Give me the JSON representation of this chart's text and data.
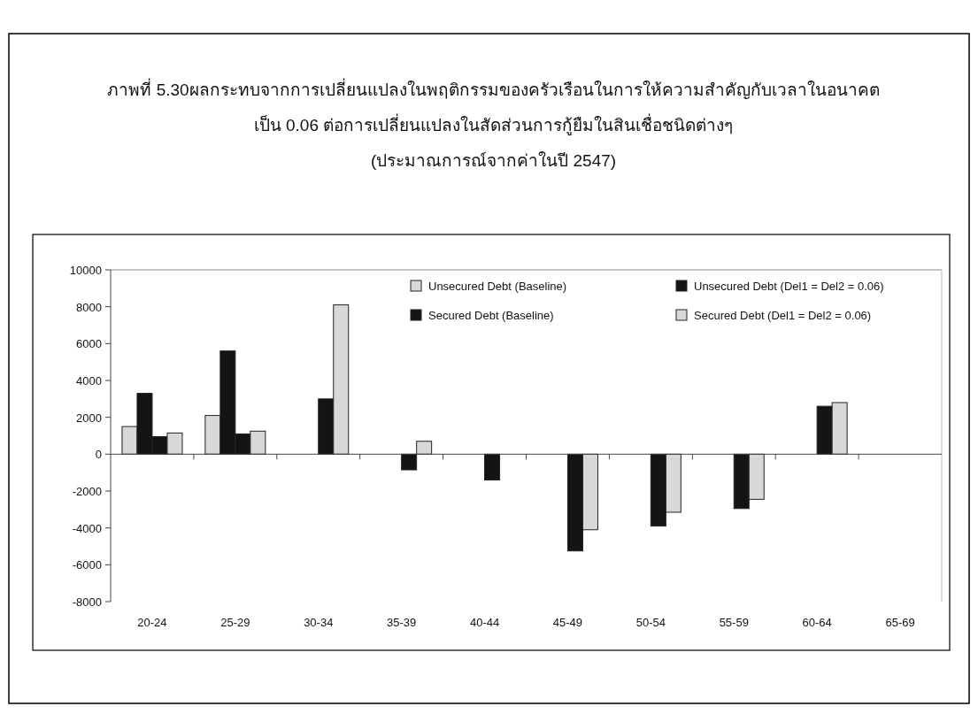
{
  "chart_data": {
    "type": "bar",
    "title": "ภาพที่ 5.30ผลกระทบจากการเปลี่ยนแปลงในพฤติกรรมของครัวเรือนในการให้ความสำคัญกับเวลาในอนาคต\nเป็น 0.06 ต่อการเปลี่ยนแปลงในสัดส่วนการกู้ยืมในสินเชื่อชนิดต่างๆ",
    "subtitle": "(ประมาณการณ์จากค่าในปี 2547)",
    "categories": [
      "20-24",
      "25-29",
      "30-34",
      "35-39",
      "40-44",
      "45-49",
      "50-54",
      "55-59",
      "60-64",
      "65-69"
    ],
    "series": [
      {
        "name": "Unsecured Debt (Baseline)",
        "color": "#d8d8d8",
        "values": [
          1500,
          2100,
          null,
          null,
          null,
          null,
          null,
          null,
          null,
          null
        ]
      },
      {
        "name": "Secured Debt (Baseline)",
        "color": "#141414",
        "values": [
          3300,
          5600,
          null,
          null,
          null,
          null,
          null,
          null,
          null,
          null
        ]
      },
      {
        "name": "Unsecured Debt (Del1 = Del2 = 0.06)",
        "color": "#141414",
        "values": [
          950,
          1100,
          3000,
          -850,
          -1400,
          -5250,
          -3900,
          -2950,
          2600,
          null
        ]
      },
      {
        "name": "Secured Debt (Del1 = Del2 = 0.06)",
        "color": "#d8d8d8",
        "values": [
          1150,
          1250,
          8100,
          700,
          null,
          -4100,
          -3150,
          -2450,
          2800,
          null
        ]
      }
    ],
    "ylim": [
      -8000,
      10000
    ],
    "yticks": [
      -8000,
      -6000,
      -4000,
      -2000,
      0,
      2000,
      4000,
      6000,
      8000,
      10000
    ],
    "legend": "top right"
  }
}
